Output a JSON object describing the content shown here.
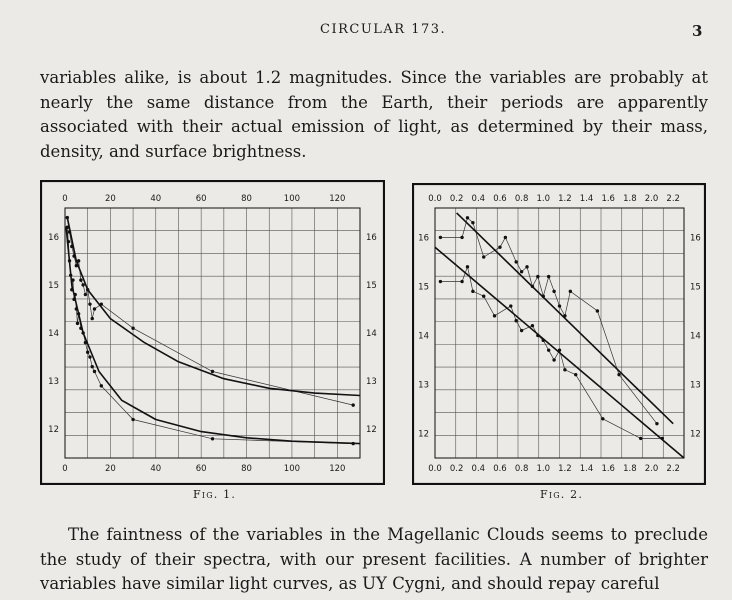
{
  "header": {
    "running_head": "CIRCULAR 173.",
    "page_number": "3"
  },
  "paragraphs": {
    "first": "variables alike, is about 1.2 magnitudes. Since the variables are probably at nearly the same distance from the Earth, their periods are apparently associated with their actual emission of light, as determined by their mass, density, and surface brightness.",
    "second": "The faintness of the variables in the Magellanic Clouds seems to preclude the study of their spectra, with our present facilities. A number of brighter variables have similar light curves, as UY Cygni, and should repay careful"
  },
  "figures": {
    "fig1_caption": "Fig. 1.",
    "fig2_caption": "Fig. 2."
  },
  "chart_data": [
    {
      "type": "scatter",
      "id": "fig1",
      "title": "",
      "xlabel": "",
      "ylabel": "",
      "xlim": [
        0,
        130
      ],
      "ylim": [
        16.6,
        11.4
      ],
      "y_inverted": true,
      "grid": true,
      "x_ticks_top": [
        "0",
        "20",
        "40",
        "60",
        "80",
        "100",
        "120"
      ],
      "x_ticks_bottom": [
        "0",
        "20",
        "40",
        "60",
        "80",
        "100",
        "120"
      ],
      "x_tick_values": [
        0,
        20,
        40,
        60,
        80,
        100,
        120
      ],
      "y_ticks_left": [
        "12",
        "13",
        "14",
        "15",
        "16"
      ],
      "y_ticks_right": [
        "12",
        "13",
        "14",
        "15",
        "16"
      ],
      "y_tick_values": [
        12,
        13,
        14,
        15,
        16
      ],
      "series": [
        {
          "points": [
            [
              1,
              16.2
            ],
            [
              1.5,
              15.9
            ],
            [
              2,
              15.5
            ],
            [
              2.5,
              15.2
            ],
            [
              3,
              14.9
            ],
            [
              3.5,
              15.1
            ],
            [
              4,
              14.7
            ],
            [
              4.5,
              14.8
            ],
            [
              5,
              14.5
            ],
            [
              5.5,
              14.2
            ],
            [
              6,
              14.4
            ],
            [
              7,
              14.1
            ],
            [
              8,
              14.0
            ],
            [
              9,
              13.8
            ],
            [
              10,
              13.6
            ],
            [
              11,
              13.5
            ],
            [
              12,
              13.3
            ],
            [
              13,
              13.2
            ],
            [
              16,
              12.9
            ],
            [
              30,
              12.2
            ],
            [
              65,
              11.8
            ],
            [
              127,
              11.7
            ]
          ],
          "curve": [
            [
              0.5,
              16.2
            ],
            [
              3,
              15.0
            ],
            [
              8,
              14.0
            ],
            [
              15,
              13.2
            ],
            [
              25,
              12.6
            ],
            [
              40,
              12.2
            ],
            [
              60,
              11.95
            ],
            [
              80,
              11.82
            ],
            [
              100,
              11.75
            ],
            [
              130,
              11.7
            ]
          ]
        },
        {
          "points": [
            [
              1,
              16.4
            ],
            [
              2,
              16.1
            ],
            [
              3,
              15.8
            ],
            [
              4,
              15.6
            ],
            [
              5,
              15.4
            ],
            [
              6,
              15.5
            ],
            [
              7,
              15.1
            ],
            [
              8,
              15.0
            ],
            [
              9,
              14.8
            ],
            [
              10,
              14.9
            ],
            [
              11,
              14.6
            ],
            [
              12,
              14.3
            ],
            [
              13,
              14.5
            ],
            [
              16,
              14.6
            ],
            [
              30,
              14.1
            ],
            [
              65,
              13.2
            ],
            [
              127,
              12.5
            ]
          ],
          "curve": [
            [
              1,
              16.4
            ],
            [
              5,
              15.5
            ],
            [
              10,
              14.9
            ],
            [
              20,
              14.3
            ],
            [
              35,
              13.8
            ],
            [
              50,
              13.4
            ],
            [
              70,
              13.05
            ],
            [
              90,
              12.85
            ],
            [
              110,
              12.75
            ],
            [
              130,
              12.7
            ]
          ]
        }
      ]
    },
    {
      "type": "scatter",
      "id": "fig2",
      "title": "",
      "xlabel": "",
      "ylabel": "",
      "xlim": [
        0,
        2.3
      ],
      "ylim": [
        16.6,
        11.5
      ],
      "y_inverted": true,
      "grid": true,
      "x_ticks_top": [
        "0.0",
        "0.2",
        "0.4",
        "0.6",
        "0.8",
        "1.0",
        "1.2",
        "1.4",
        "1.6",
        "1.8",
        "2.0",
        "2.2"
      ],
      "x_ticks_bottom": [
        "0.0",
        "0.2",
        "0.4",
        "0.6",
        "0.8",
        "1.0",
        "1.2",
        "1.4",
        "1.6",
        "1.8",
        "2.0",
        "2.2"
      ],
      "x_tick_values": [
        0.0,
        0.2,
        0.4,
        0.6,
        0.8,
        1.0,
        1.2,
        1.4,
        1.6,
        1.8,
        2.0,
        2.2
      ],
      "y_ticks_left": [
        "12",
        "13",
        "14",
        "15",
        "16"
      ],
      "y_ticks_right": [
        "12",
        "13",
        "14",
        "15",
        "16"
      ],
      "y_tick_values": [
        12,
        13,
        14,
        15,
        16
      ],
      "series": [
        {
          "points": [
            [
              0.05,
              15.1
            ],
            [
              0.25,
              15.1
            ],
            [
              0.3,
              15.4
            ],
            [
              0.35,
              14.9
            ],
            [
              0.45,
              14.8
            ],
            [
              0.55,
              14.4
            ],
            [
              0.7,
              14.6
            ],
            [
              0.75,
              14.3
            ],
            [
              0.8,
              14.1
            ],
            [
              0.9,
              14.2
            ],
            [
              0.95,
              14.0
            ],
            [
              1.0,
              13.9
            ],
            [
              1.05,
              13.7
            ],
            [
              1.1,
              13.5
            ],
            [
              1.15,
              13.7
            ],
            [
              1.2,
              13.3
            ],
            [
              1.3,
              13.2
            ],
            [
              1.55,
              12.3
            ],
            [
              1.9,
              11.9
            ],
            [
              2.1,
              11.9
            ]
          ],
          "fit": [
            [
              0.0,
              15.8
            ],
            [
              2.3,
              11.5
            ]
          ]
        },
        {
          "points": [
            [
              0.05,
              16.0
            ],
            [
              0.25,
              16.0
            ],
            [
              0.3,
              16.4
            ],
            [
              0.35,
              16.3
            ],
            [
              0.45,
              15.6
            ],
            [
              0.6,
              15.8
            ],
            [
              0.65,
              16.0
            ],
            [
              0.75,
              15.5
            ],
            [
              0.8,
              15.3
            ],
            [
              0.85,
              15.4
            ],
            [
              0.9,
              15.0
            ],
            [
              0.95,
              15.2
            ],
            [
              1.0,
              14.8
            ],
            [
              1.05,
              15.2
            ],
            [
              1.1,
              14.9
            ],
            [
              1.15,
              14.6
            ],
            [
              1.2,
              14.4
            ],
            [
              1.25,
              14.9
            ],
            [
              1.5,
              14.5
            ],
            [
              1.7,
              13.2
            ],
            [
              2.05,
              12.2
            ]
          ],
          "fit": [
            [
              0.2,
              16.5
            ],
            [
              2.2,
              12.2
            ]
          ]
        }
      ]
    }
  ]
}
